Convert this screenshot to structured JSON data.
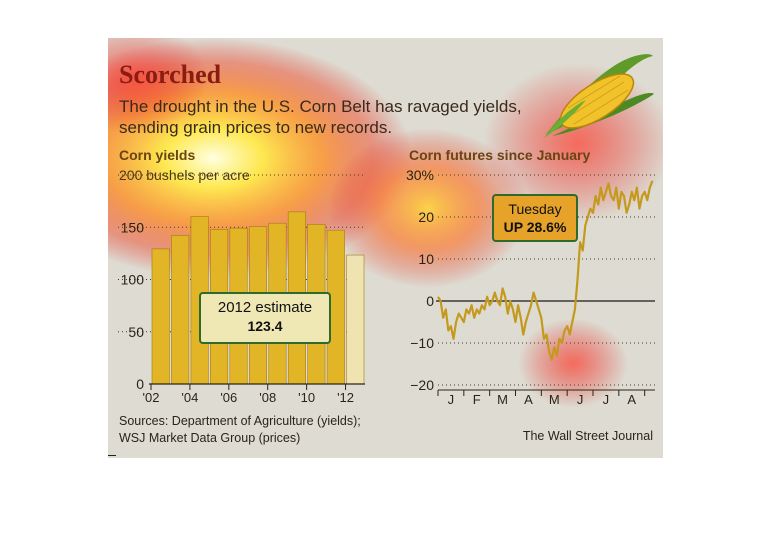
{
  "header": {
    "title": "Scorched",
    "subtitle_line1": "The drought in the U.S. Corn Belt has ravaged yields,",
    "subtitle_line2": "sending grain prices to new records."
  },
  "yields": {
    "heading": "Corn yields",
    "unit_label": "200 bushels per acre",
    "callout_label": "2012 estimate",
    "callout_value": "123.4",
    "y_ticks": [
      "150",
      "100",
      "50",
      "0"
    ],
    "x_ticks": [
      "'02",
      "'04",
      "'06",
      "'08",
      "'10",
      "'12"
    ]
  },
  "futures": {
    "heading": "Corn futures since January",
    "callout_label": "Tuesday",
    "callout_value": "UP 28.6%",
    "y_ticks": [
      "30%",
      "20",
      "10",
      "0",
      "−10",
      "−20"
    ],
    "x_ticks": [
      "J",
      "F",
      "M",
      "A",
      "M",
      "J",
      "J",
      "A"
    ]
  },
  "footer": {
    "sources_line1": "Sources: Department of Agriculture (yields);",
    "sources_line2": "WSJ Market Data Group (prices)",
    "credit": "The Wall Street Journal"
  },
  "colors": {
    "bar_fill": "#e1b525",
    "bar_estimate_fill": "#efe3b2",
    "line": "#c49a1e",
    "callout_border": "#2d6a2c",
    "title": "#8b1c11"
  },
  "chart_data": [
    {
      "type": "bar",
      "title": "Corn yields",
      "ylabel": "bushels per acre",
      "categories": [
        "2002",
        "2003",
        "2004",
        "2005",
        "2006",
        "2007",
        "2008",
        "2009",
        "2010",
        "2011",
        "2012"
      ],
      "values": [
        129.3,
        142.2,
        160.3,
        147.9,
        149.1,
        150.7,
        153.9,
        164.7,
        152.8,
        147.2,
        123.4
      ],
      "estimate_index": 10,
      "ylim": [
        0,
        200
      ],
      "grid": true
    },
    {
      "type": "line",
      "title": "Corn futures since January",
      "ylabel": "% change",
      "ylim": [
        -20,
        30
      ],
      "x_range": [
        0,
        8.4
      ],
      "x_unit": "months since January 1 (2012)",
      "grid": true,
      "series": [
        {
          "x": [
            0.0,
            0.1,
            0.2,
            0.3,
            0.4,
            0.5,
            0.6,
            0.7,
            0.8,
            0.9,
            1.0,
            1.1,
            1.2,
            1.3,
            1.4,
            1.5,
            1.6,
            1.7,
            1.8,
            1.9,
            2.0,
            2.1,
            2.2,
            2.3,
            2.4,
            2.5,
            2.6,
            2.7,
            2.8,
            2.9,
            3.0,
            3.1,
            3.2,
            3.3,
            3.4,
            3.5,
            3.6,
            3.7,
            3.8,
            3.9,
            4.0,
            4.1,
            4.2,
            4.3,
            4.4,
            4.5,
            4.6,
            4.7,
            4.8,
            4.9,
            5.0,
            5.1,
            5.2,
            5.3,
            5.4,
            5.5,
            5.6,
            5.7,
            5.8,
            5.9,
            6.0,
            6.1,
            6.2,
            6.3,
            6.4,
            6.5,
            6.6,
            6.7,
            6.8,
            6.9,
            7.0,
            7.1,
            7.2,
            7.3,
            7.4,
            7.5,
            7.6,
            7.7,
            7.8,
            7.9,
            8.0,
            8.1,
            8.2,
            8.3
          ],
          "values": [
            1,
            0,
            -4,
            -2,
            -7,
            -6,
            -9,
            -5,
            -3,
            -4,
            -5,
            -2,
            -3,
            -1,
            -4,
            -2,
            -3,
            -1,
            -2,
            1,
            -1,
            0,
            2,
            0,
            -1,
            3,
            1,
            -3,
            0,
            -2,
            -5,
            -1,
            -4,
            -8,
            -5,
            -3,
            -1,
            2,
            0,
            -2,
            -4,
            -9,
            -8,
            -12,
            -14,
            -11,
            -13,
            -9,
            -10,
            -7,
            -6,
            -8,
            -5,
            -2,
            5,
            14,
            12,
            18,
            20,
            22,
            21,
            25,
            23,
            27,
            24,
            26,
            28,
            25,
            24,
            27,
            22,
            26,
            25,
            21,
            23,
            26,
            24,
            27,
            22,
            25,
            26,
            24,
            27,
            28.6
          ]
        }
      ]
    }
  ]
}
